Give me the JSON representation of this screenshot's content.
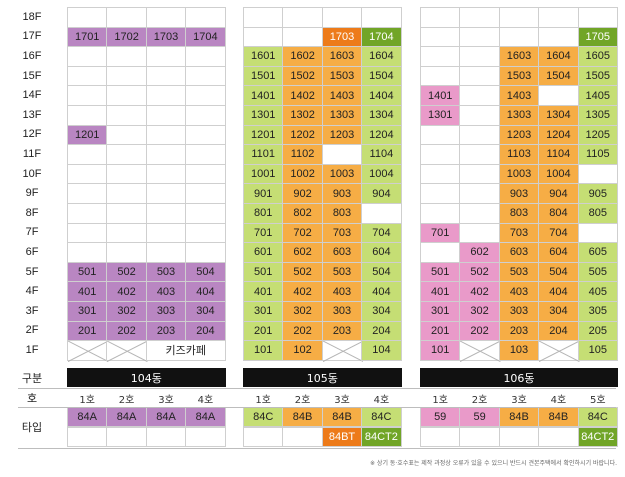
{
  "floor_labels": [
    "18F",
    "17F",
    "16F",
    "15F",
    "14F",
    "13F",
    "12F",
    "11F",
    "10F",
    "9F",
    "8F",
    "7F",
    "6F",
    "5F",
    "4F",
    "3F",
    "2F",
    "1F"
  ],
  "row_labels": {
    "gubun": "구분",
    "ho": "호",
    "type": "타입"
  },
  "colors": {
    "purple": "#b986c2",
    "green": "#c5de74",
    "orange": "#f6ad45",
    "pink": "#e99ac9",
    "dark_orange": "#ed7b1a",
    "dark_green": "#71a527"
  },
  "buildings": [
    {
      "name": "104동",
      "ho": [
        "1호",
        "2호",
        "3호",
        "4호"
      ],
      "types": [
        "84A",
        "84A",
        "84A",
        "84A"
      ],
      "types_extra": [
        "",
        "",
        "",
        ""
      ],
      "rows": [
        [
          [
            "",
            ""
          ],
          [
            "",
            ""
          ],
          [
            "",
            ""
          ],
          [
            "",
            ""
          ]
        ],
        [
          [
            "1701",
            "purple"
          ],
          [
            "1702",
            "purple"
          ],
          [
            "1703",
            "purple"
          ],
          [
            "1704",
            "purple"
          ]
        ],
        [
          [
            "",
            ""
          ],
          [
            "",
            ""
          ],
          [
            "",
            ""
          ],
          [
            "",
            ""
          ]
        ],
        [
          [
            "",
            ""
          ],
          [
            "",
            ""
          ],
          [
            "",
            ""
          ],
          [
            "",
            ""
          ]
        ],
        [
          [
            "",
            ""
          ],
          [
            "",
            ""
          ],
          [
            "",
            ""
          ],
          [
            "",
            ""
          ]
        ],
        [
          [
            "",
            ""
          ],
          [
            "",
            ""
          ],
          [
            "",
            ""
          ],
          [
            "",
            ""
          ]
        ],
        [
          [
            "1201",
            "purple"
          ],
          [
            "",
            ""
          ],
          [
            "",
            ""
          ],
          [
            "",
            ""
          ]
        ],
        [
          [
            "",
            ""
          ],
          [
            "",
            ""
          ],
          [
            "",
            ""
          ],
          [
            "",
            ""
          ]
        ],
        [
          [
            "",
            ""
          ],
          [
            "",
            ""
          ],
          [
            "",
            ""
          ],
          [
            "",
            ""
          ]
        ],
        [
          [
            "",
            ""
          ],
          [
            "",
            ""
          ],
          [
            "",
            ""
          ],
          [
            "",
            ""
          ]
        ],
        [
          [
            "",
            ""
          ],
          [
            "",
            ""
          ],
          [
            "",
            ""
          ],
          [
            "",
            ""
          ]
        ],
        [
          [
            "",
            ""
          ],
          [
            "",
            ""
          ],
          [
            "",
            ""
          ],
          [
            "",
            ""
          ]
        ],
        [
          [
            "",
            ""
          ],
          [
            "",
            ""
          ],
          [
            "",
            ""
          ],
          [
            "",
            ""
          ]
        ],
        [
          [
            "501",
            "purple"
          ],
          [
            "502",
            "purple"
          ],
          [
            "503",
            "purple"
          ],
          [
            "504",
            "purple"
          ]
        ],
        [
          [
            "401",
            "purple"
          ],
          [
            "402",
            "purple"
          ],
          [
            "403",
            "purple"
          ],
          [
            "404",
            "purple"
          ]
        ],
        [
          [
            "301",
            "purple"
          ],
          [
            "302",
            "purple"
          ],
          [
            "303",
            "purple"
          ],
          [
            "304",
            "purple"
          ]
        ],
        [
          [
            "201",
            "purple"
          ],
          [
            "202",
            "purple"
          ],
          [
            "203",
            "purple"
          ],
          [
            "204",
            "purple"
          ]
        ],
        [
          [
            "",
            "x"
          ],
          [
            "",
            "x"
          ],
          [
            "키즈카페",
            "span2"
          ],
          [
            "",
            ""
          ]
        ]
      ]
    },
    {
      "name": "105동",
      "ho": [
        "1호",
        "2호",
        "3호",
        "4호"
      ],
      "types": [
        "84C",
        "84B",
        "84B",
        "84C"
      ],
      "types_extra": [
        "",
        "",
        "84BT",
        "84CT2"
      ],
      "rows": [
        [
          [
            "",
            ""
          ],
          [
            "",
            ""
          ],
          [
            "",
            ""
          ],
          [
            "",
            ""
          ]
        ],
        [
          [
            "",
            ""
          ],
          [
            "",
            ""
          ],
          [
            "1703",
            "dark_orange"
          ],
          [
            "1704",
            "dark_green"
          ]
        ],
        [
          [
            "1601",
            "green"
          ],
          [
            "1602",
            "orange"
          ],
          [
            "1603",
            "orange"
          ],
          [
            "1604",
            "green"
          ]
        ],
        [
          [
            "1501",
            "green"
          ],
          [
            "1502",
            "orange"
          ],
          [
            "1503",
            "orange"
          ],
          [
            "1504",
            "green"
          ]
        ],
        [
          [
            "1401",
            "green"
          ],
          [
            "1402",
            "orange"
          ],
          [
            "1403",
            "orange"
          ],
          [
            "1404",
            "green"
          ]
        ],
        [
          [
            "1301",
            "green"
          ],
          [
            "1302",
            "orange"
          ],
          [
            "1303",
            "orange"
          ],
          [
            "1304",
            "green"
          ]
        ],
        [
          [
            "1201",
            "green"
          ],
          [
            "1202",
            "orange"
          ],
          [
            "1203",
            "orange"
          ],
          [
            "1204",
            "green"
          ]
        ],
        [
          [
            "1101",
            "green"
          ],
          [
            "1102",
            "orange"
          ],
          [
            "",
            ""
          ],
          [
            "1104",
            "green"
          ]
        ],
        [
          [
            "1001",
            "green"
          ],
          [
            "1002",
            "orange"
          ],
          [
            "1003",
            "orange"
          ],
          [
            "1004",
            "green"
          ]
        ],
        [
          [
            "901",
            "green"
          ],
          [
            "902",
            "orange"
          ],
          [
            "903",
            "orange"
          ],
          [
            "904",
            "green"
          ]
        ],
        [
          [
            "801",
            "green"
          ],
          [
            "802",
            "orange"
          ],
          [
            "803",
            "orange"
          ],
          [
            "",
            ""
          ]
        ],
        [
          [
            "701",
            "green"
          ],
          [
            "702",
            "orange"
          ],
          [
            "703",
            "orange"
          ],
          [
            "704",
            "green"
          ]
        ],
        [
          [
            "601",
            "green"
          ],
          [
            "602",
            "orange"
          ],
          [
            "603",
            "orange"
          ],
          [
            "604",
            "green"
          ]
        ],
        [
          [
            "501",
            "green"
          ],
          [
            "502",
            "orange"
          ],
          [
            "503",
            "orange"
          ],
          [
            "504",
            "green"
          ]
        ],
        [
          [
            "401",
            "green"
          ],
          [
            "402",
            "orange"
          ],
          [
            "403",
            "orange"
          ],
          [
            "404",
            "green"
          ]
        ],
        [
          [
            "301",
            "green"
          ],
          [
            "302",
            "orange"
          ],
          [
            "303",
            "orange"
          ],
          [
            "304",
            "green"
          ]
        ],
        [
          [
            "201",
            "green"
          ],
          [
            "202",
            "orange"
          ],
          [
            "203",
            "orange"
          ],
          [
            "204",
            "green"
          ]
        ],
        [
          [
            "101",
            "green"
          ],
          [
            "102",
            "orange"
          ],
          [
            "",
            "x"
          ],
          [
            "104",
            "green"
          ]
        ]
      ]
    },
    {
      "name": "106동",
      "ho": [
        "1호",
        "2호",
        "3호",
        "4호",
        "5호"
      ],
      "types": [
        "59",
        "59",
        "84B",
        "84B",
        "84C"
      ],
      "types_extra": [
        "",
        "",
        "",
        "",
        "84CT2"
      ],
      "rows": [
        [
          [
            "",
            ""
          ],
          [
            "",
            ""
          ],
          [
            "",
            ""
          ],
          [
            "",
            ""
          ],
          [
            "",
            ""
          ]
        ],
        [
          [
            "",
            ""
          ],
          [
            "",
            ""
          ],
          [
            "",
            ""
          ],
          [
            "",
            ""
          ],
          [
            "1705",
            "dark_green"
          ]
        ],
        [
          [
            "",
            ""
          ],
          [
            "",
            ""
          ],
          [
            "1603",
            "orange"
          ],
          [
            "1604",
            "orange"
          ],
          [
            "1605",
            "green"
          ]
        ],
        [
          [
            "",
            ""
          ],
          [
            "",
            ""
          ],
          [
            "1503",
            "orange"
          ],
          [
            "1504",
            "orange"
          ],
          [
            "1505",
            "green"
          ]
        ],
        [
          [
            "1401",
            "pink"
          ],
          [
            "",
            ""
          ],
          [
            "1403",
            "orange"
          ],
          [
            "",
            ""
          ],
          [
            "1405",
            "green"
          ]
        ],
        [
          [
            "1301",
            "pink"
          ],
          [
            "",
            ""
          ],
          [
            "1303",
            "orange"
          ],
          [
            "1304",
            "orange"
          ],
          [
            "1305",
            "green"
          ]
        ],
        [
          [
            "",
            ""
          ],
          [
            "",
            ""
          ],
          [
            "1203",
            "orange"
          ],
          [
            "1204",
            "orange"
          ],
          [
            "1205",
            "green"
          ]
        ],
        [
          [
            "",
            ""
          ],
          [
            "",
            ""
          ],
          [
            "1103",
            "orange"
          ],
          [
            "1104",
            "orange"
          ],
          [
            "1105",
            "green"
          ]
        ],
        [
          [
            "",
            ""
          ],
          [
            "",
            ""
          ],
          [
            "1003",
            "orange"
          ],
          [
            "1004",
            "orange"
          ],
          [
            "",
            ""
          ]
        ],
        [
          [
            "",
            ""
          ],
          [
            "",
            ""
          ],
          [
            "903",
            "orange"
          ],
          [
            "904",
            "orange"
          ],
          [
            "905",
            "green"
          ]
        ],
        [
          [
            "",
            ""
          ],
          [
            "",
            ""
          ],
          [
            "803",
            "orange"
          ],
          [
            "804",
            "orange"
          ],
          [
            "805",
            "green"
          ]
        ],
        [
          [
            "701",
            "pink"
          ],
          [
            "",
            ""
          ],
          [
            "703",
            "orange"
          ],
          [
            "704",
            "orange"
          ],
          [
            "",
            ""
          ]
        ],
        [
          [
            "",
            ""
          ],
          [
            "602",
            "pink"
          ],
          [
            "603",
            "orange"
          ],
          [
            "604",
            "orange"
          ],
          [
            "605",
            "green"
          ]
        ],
        [
          [
            "501",
            "pink"
          ],
          [
            "502",
            "pink"
          ],
          [
            "503",
            "orange"
          ],
          [
            "504",
            "orange"
          ],
          [
            "505",
            "green"
          ]
        ],
        [
          [
            "401",
            "pink"
          ],
          [
            "402",
            "pink"
          ],
          [
            "403",
            "orange"
          ],
          [
            "404",
            "orange"
          ],
          [
            "405",
            "green"
          ]
        ],
        [
          [
            "301",
            "pink"
          ],
          [
            "302",
            "pink"
          ],
          [
            "303",
            "orange"
          ],
          [
            "304",
            "orange"
          ],
          [
            "305",
            "green"
          ]
        ],
        [
          [
            "201",
            "pink"
          ],
          [
            "202",
            "pink"
          ],
          [
            "203",
            "orange"
          ],
          [
            "204",
            "orange"
          ],
          [
            "205",
            "green"
          ]
        ],
        [
          [
            "101",
            "pink"
          ],
          [
            "",
            "x"
          ],
          [
            "103",
            "orange"
          ],
          [
            "",
            "x"
          ],
          [
            "105",
            "green"
          ]
        ]
      ]
    }
  ],
  "footnote": "※ 상기 동·호수표는 제작 과정상 오류가 있을 수 있으니 반드시 견본주택에서 확인하시기 바랍니다."
}
